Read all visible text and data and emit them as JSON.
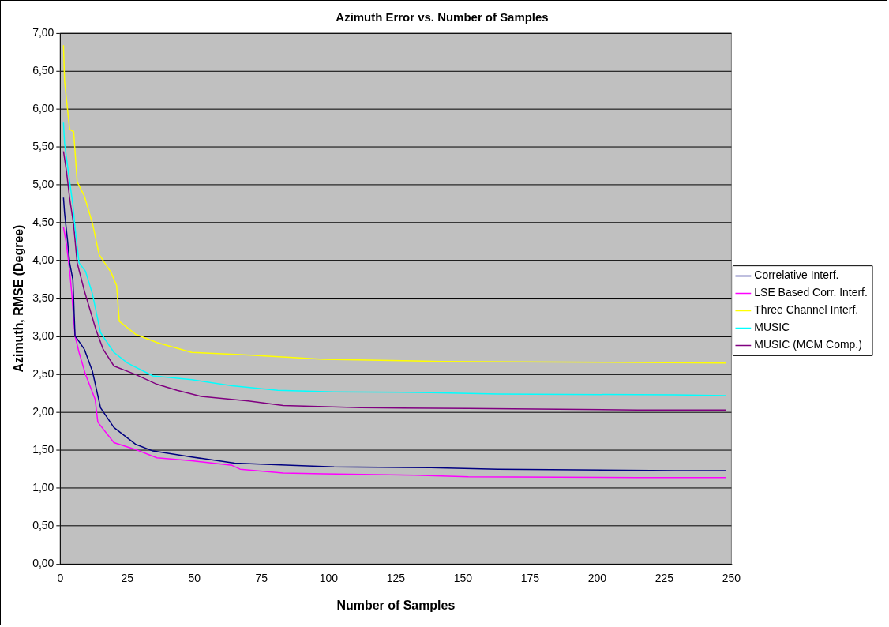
{
  "chart_data": {
    "type": "line",
    "title": "Azimuth Error vs. Number of Samples",
    "xlabel": "Number of Samples",
    "ylabel": "Azimuth, RMSE (Degree)",
    "xlim": [
      0,
      250
    ],
    "xticks": [
      0,
      25,
      50,
      75,
      100,
      125,
      150,
      175,
      200,
      225,
      250
    ],
    "ylim": [
      0,
      7
    ],
    "yticks": [
      {
        "value": 0,
        "label": "0,00"
      },
      {
        "value": 0.5,
        "label": "0,50"
      },
      {
        "value": 1,
        "label": "1,00"
      },
      {
        "value": 1.5,
        "label": "1,50"
      },
      {
        "value": 2,
        "label": "2,00"
      },
      {
        "value": 2.5,
        "label": "2,50"
      },
      {
        "value": 3,
        "label": "3,00"
      },
      {
        "value": 3.5,
        "label": "3,50"
      },
      {
        "value": 4,
        "label": "4,00"
      },
      {
        "value": 4.5,
        "label": "4,50"
      },
      {
        "value": 5,
        "label": "5,00"
      },
      {
        "value": 5.5,
        "label": "5,50"
      },
      {
        "value": 6,
        "label": "6,00"
      },
      {
        "value": 6.5,
        "label": "6,50"
      },
      {
        "value": 7,
        "label": "7,00"
      }
    ],
    "grid": "y",
    "legend": "right",
    "marker": "none",
    "line_style": "solid",
    "series": [
      {
        "name": "Correlative Interf.",
        "color": "#000080",
        "x": [
          1.2,
          1.6,
          2.7,
          3.5,
          4.7,
          5.5,
          9,
          12,
          15,
          20,
          28,
          34.5,
          49,
          65,
          86,
          102,
          138,
          163,
          229,
          248
        ],
        "values": [
          4.83,
          4.63,
          4.27,
          3.97,
          3.75,
          3.01,
          2.83,
          2.54,
          2.06,
          1.8,
          1.58,
          1.49,
          1.41,
          1.33,
          1.3,
          1.28,
          1.27,
          1.25,
          1.23,
          1.23
        ]
      },
      {
        "name": "LSE Based Corr. Interf.",
        "color": "#ff00ff",
        "x": [
          1.2,
          2.3,
          3.5,
          4.3,
          5.5,
          7,
          9.4,
          13,
          14,
          20,
          28,
          36,
          49,
          64,
          67,
          83,
          98,
          132,
          152,
          215,
          248
        ],
        "values": [
          4.44,
          4.22,
          3.86,
          3.56,
          3.01,
          2.79,
          2.5,
          2.17,
          1.87,
          1.6,
          1.51,
          1.4,
          1.36,
          1.3,
          1.25,
          1.2,
          1.19,
          1.17,
          1.15,
          1.14,
          1.14
        ]
      },
      {
        "name": "Three Channel Interf.",
        "color": "#ffff00",
        "x": [
          1.2,
          1.6,
          3.5,
          5,
          6.3,
          9,
          12,
          14.5,
          19,
          21,
          22,
          28,
          36,
          49,
          67,
          88,
          98,
          128,
          142,
          204,
          248
        ],
        "values": [
          6.84,
          6.37,
          5.73,
          5.7,
          5.04,
          4.85,
          4.49,
          4.08,
          3.84,
          3.67,
          3.2,
          3.03,
          2.92,
          2.79,
          2.76,
          2.72,
          2.7,
          2.68,
          2.67,
          2.66,
          2.65
        ]
      },
      {
        "name": "MUSIC",
        "color": "#00ffff",
        "x": [
          1.2,
          1.6,
          3.5,
          4.7,
          5.5,
          7,
          9.4,
          12,
          15,
          20,
          25,
          34.5,
          49,
          64,
          81,
          102,
          138,
          163,
          229,
          248
        ],
        "values": [
          5.82,
          5.55,
          5.04,
          4.74,
          4.44,
          3.97,
          3.86,
          3.56,
          3.05,
          2.79,
          2.65,
          2.48,
          2.43,
          2.35,
          2.29,
          2.27,
          2.26,
          2.24,
          2.23,
          2.22
        ]
      },
      {
        "name": "MUSIC (MCM Comp.)",
        "color": "#800080",
        "x": [
          1.2,
          2.3,
          3.5,
          5,
          6.3,
          9,
          13.3,
          16,
          20,
          28,
          36,
          43.5,
          52.5,
          70,
          83,
          112,
          152,
          215,
          248
        ],
        "values": [
          5.44,
          5.18,
          4.82,
          4.47,
          3.97,
          3.6,
          3.09,
          2.83,
          2.61,
          2.5,
          2.37,
          2.29,
          2.21,
          2.15,
          2.09,
          2.06,
          2.05,
          2.03,
          2.03
        ]
      }
    ]
  }
}
